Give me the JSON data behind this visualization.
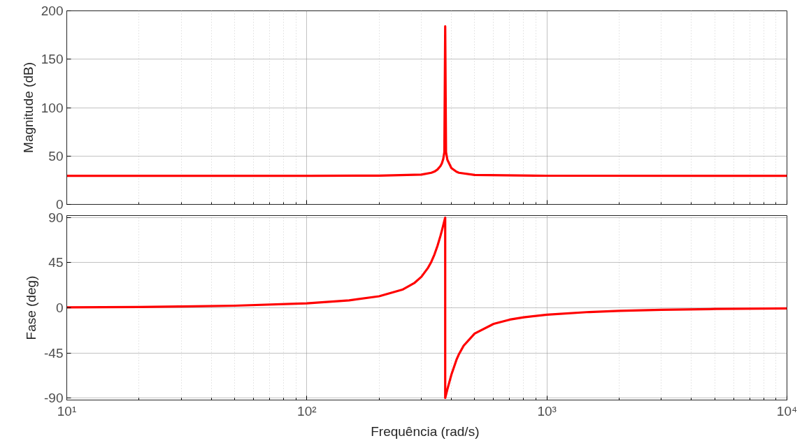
{
  "chart_data": [
    {
      "type": "line",
      "ylabel": "Magnitude (dB)",
      "log": "x",
      "grid": true,
      "tick_labels": "y",
      "xlim": [
        10,
        10000
      ],
      "ylim": [
        0,
        200
      ],
      "yticks": [
        0,
        50,
        100,
        150,
        200
      ],
      "xticks": [
        10,
        100,
        1000,
        10000
      ],
      "x": [
        10,
        100,
        200,
        300,
        330,
        340,
        350,
        360,
        365,
        370,
        374,
        377,
        380,
        385,
        400,
        420,
        430,
        500,
        1000,
        10000
      ],
      "series": [
        {
          "color": "#ff0000",
          "values": [
            29.5,
            29.5,
            29.7,
            30.8,
            32.7,
            33.9,
            36.0,
            39.5,
            42.3,
            47,
            54,
            184,
            54,
            46,
            37.6,
            33.7,
            32.7,
            30.4,
            29.6,
            29.5
          ]
        }
      ]
    },
    {
      "type": "line",
      "ylabel": "Fase (deg)",
      "xlabel": "Frequência  (rad/s)",
      "log": "x",
      "grid": true,
      "xlim": [
        10,
        10000
      ],
      "ylim": [
        -92,
        92
      ],
      "yticks": [
        -90,
        -45,
        0,
        45,
        90
      ],
      "xticks": [
        {
          "value": 10,
          "label": "10¹"
        },
        {
          "value": 100,
          "label": "10²"
        },
        {
          "value": 1000,
          "label": "10³"
        },
        {
          "value": 10000,
          "label": "10⁴"
        }
      ],
      "x": [
        10,
        20,
        30,
        50,
        100,
        150,
        200,
        250,
        280,
        300,
        320,
        330,
        340,
        350,
        360,
        365,
        370,
        376,
        377,
        377,
        378,
        380,
        385,
        400,
        420,
        430,
        450,
        500,
        600,
        700,
        800,
        1000,
        1500,
        2000,
        3000,
        5000,
        10000
      ],
      "series": [
        {
          "color": "#ff0000",
          "values": [
            0.4,
            0.8,
            1.3,
            2.1,
            4.5,
            7.4,
            11.5,
            18.1,
            24.6,
            30.9,
            40.0,
            45.9,
            53.1,
            61.7,
            71.5,
            76.8,
            82.3,
            88.9,
            89.9,
            -89.9,
            -88.9,
            -86.7,
            -81.3,
            -66.8,
            -51.9,
            -46.3,
            -37.8,
            -25.7,
            -16.0,
            -11.8,
            -9.5,
            -6.9,
            -4.2,
            -3.1,
            -2.0,
            -1.2,
            -0.6
          ]
        }
      ]
    }
  ]
}
